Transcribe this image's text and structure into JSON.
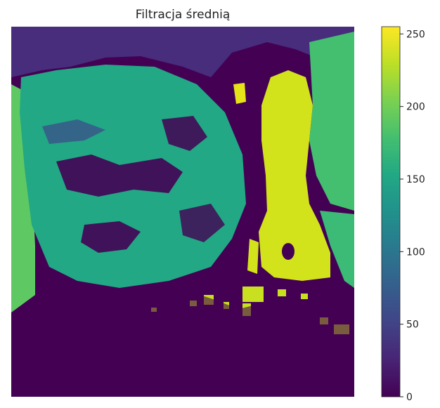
{
  "chart_data": {
    "type": "heatmap",
    "title": "Filtracja średnią",
    "colormap": "viridis",
    "colorbar": {
      "range": [
        0,
        255
      ],
      "ticks": [
        0,
        50,
        100,
        150,
        200,
        250
      ],
      "tick_labels": [
        "0",
        "50",
        "100",
        "150",
        "200",
        "250"
      ]
    },
    "image_description_levels": {
      "background_low": 30,
      "dark_blue": 60,
      "teal": 150,
      "green": 175,
      "yellow": 235
    },
    "axes_visible": false
  }
}
